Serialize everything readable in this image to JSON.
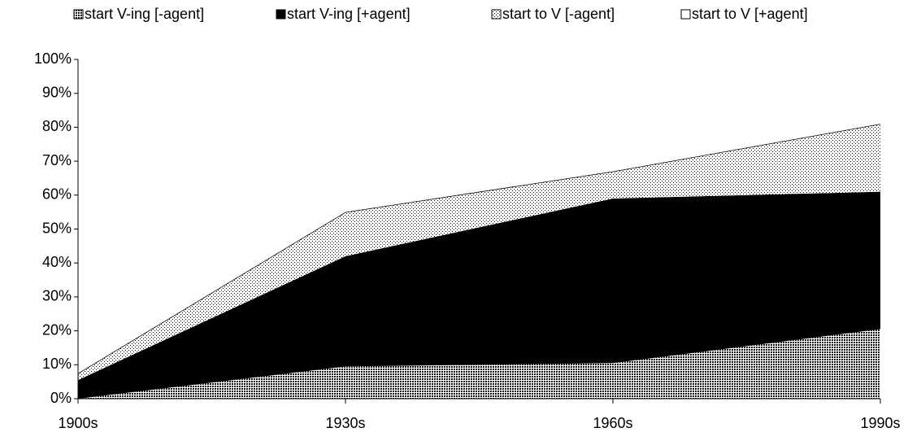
{
  "chart_data": {
    "type": "stacked_area",
    "categories": [
      "1900s",
      "1930s",
      "1960s",
      "1990s"
    ],
    "series": [
      {
        "name": "start V-ing [-agent]",
        "color": "#000000",
        "values": [
          0,
          9.5,
          10.5,
          20.5
        ]
      },
      {
        "name": "start V-ing [+agent]",
        "color": "#000000",
        "values": [
          5.5,
          32.5,
          48.5,
          40.5
        ]
      },
      {
        "name": "start to V [-agent]",
        "color": "#000000",
        "values": [
          2,
          13,
          8,
          20
        ]
      },
      {
        "name": "start to V [+agent]",
        "color": "#ffffff",
        "values": [
          92.5,
          45.5,
          33,
          19
        ]
      }
    ],
    "ylim": [
      0,
      100
    ],
    "yticks": [
      {
        "value": 0,
        "label": "0%"
      },
      {
        "value": 10,
        "label": "10%"
      },
      {
        "value": 20,
        "label": "20%"
      },
      {
        "value": 30,
        "label": "30%"
      },
      {
        "value": 40,
        "label": "40%"
      },
      {
        "value": 50,
        "label": "50%"
      },
      {
        "value": 60,
        "label": "60%"
      },
      {
        "value": 70,
        "label": "70%"
      },
      {
        "value": 80,
        "label": "80%"
      },
      {
        "value": 90,
        "label": "90%"
      },
      {
        "value": 100,
        "label": "100%"
      }
    ],
    "legend": "top"
  }
}
